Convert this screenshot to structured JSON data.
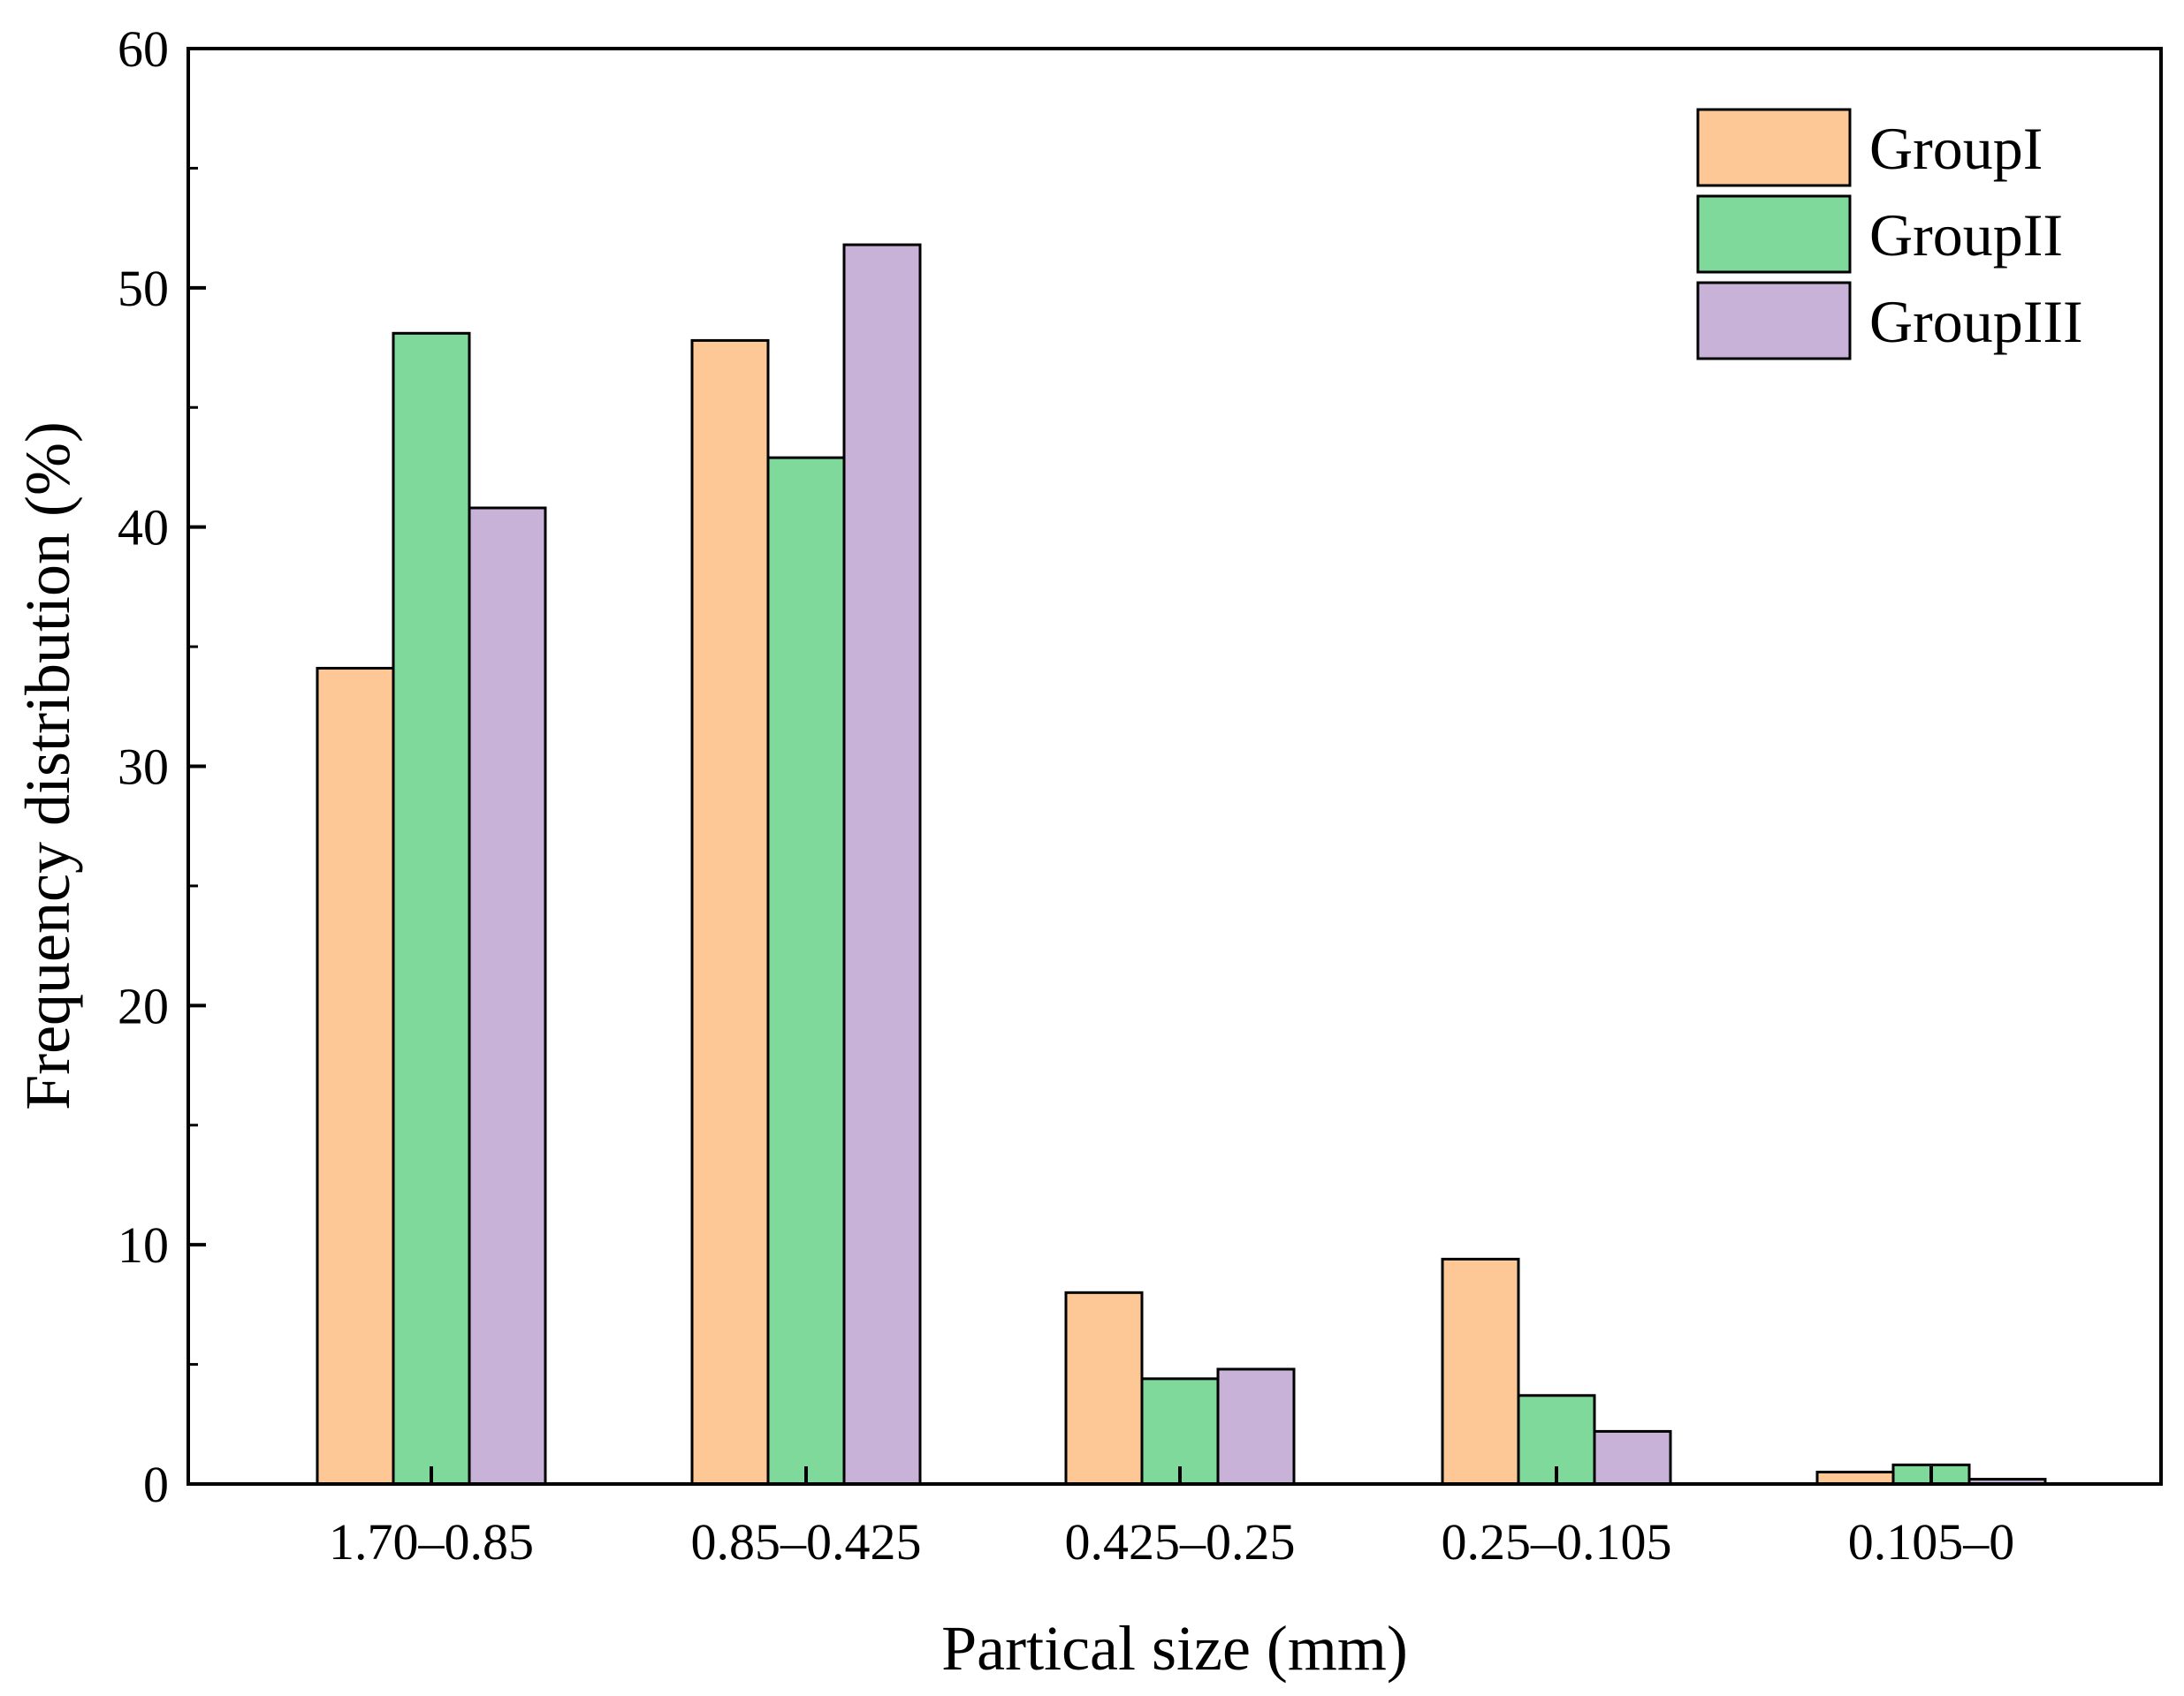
{
  "chart_data": {
    "type": "bar",
    "title": "",
    "xlabel": "Partical size (mm)",
    "ylabel": "Frequency distribution (%)",
    "categories": [
      "1.70–0.85",
      "0.85–0.425",
      "0.425–0.25",
      "0.25–0.105",
      "0.105–0"
    ],
    "ylim": [
      0,
      60
    ],
    "yticks": [
      0,
      10,
      20,
      30,
      40,
      50,
      60
    ],
    "ytick_labels": [
      "0",
      "10",
      "20",
      "30",
      "40",
      "50",
      "60"
    ],
    "minor_ytick_step": 5,
    "grid": false,
    "legend_position": "top-right",
    "series": [
      {
        "name": "GroupI",
        "color": "#FDC896",
        "values": [
          34.1,
          47.8,
          8.0,
          9.4,
          0.5
        ]
      },
      {
        "name": "GroupII",
        "color": "#7FD99B",
        "values": [
          48.1,
          42.9,
          4.4,
          3.7,
          0.8
        ]
      },
      {
        "name": "GroupIII",
        "color": "#C9B2D8",
        "values": [
          40.8,
          51.8,
          4.8,
          2.2,
          0.2
        ]
      }
    ]
  }
}
